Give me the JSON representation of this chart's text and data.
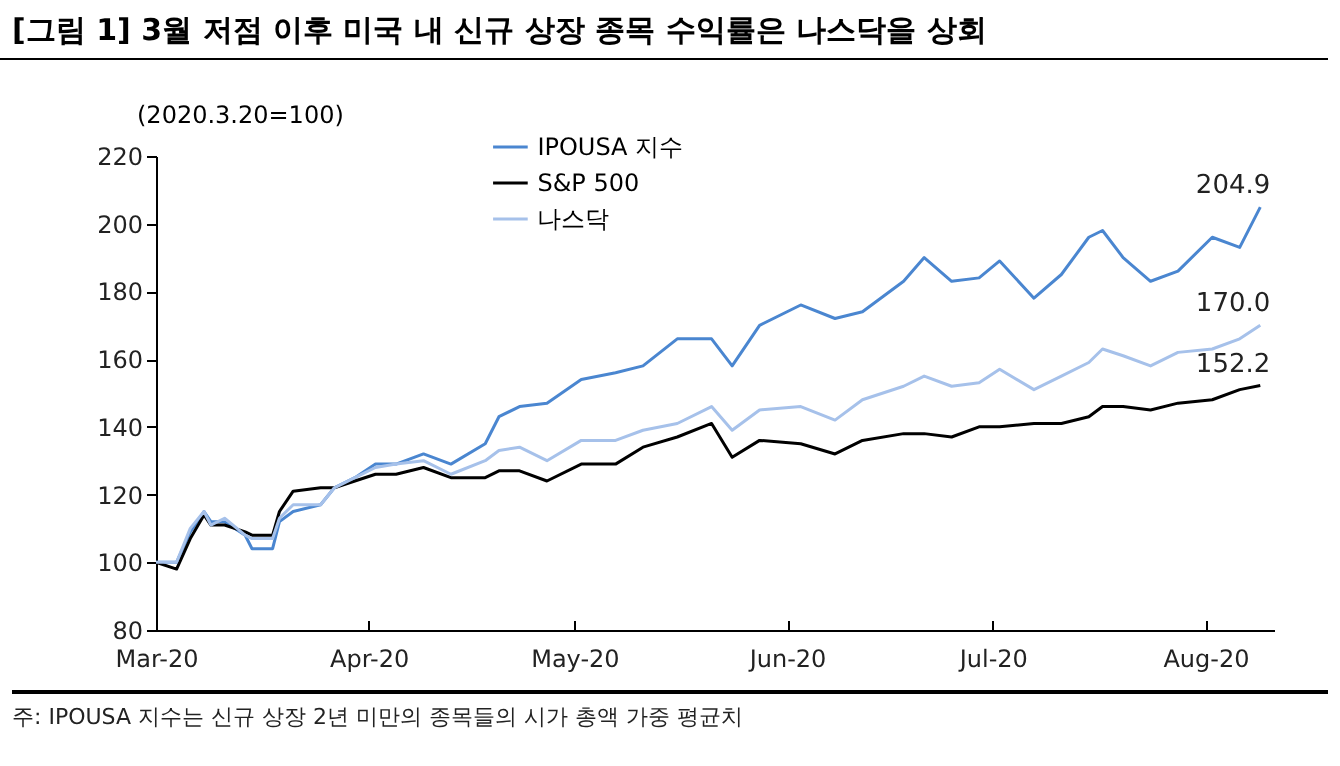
{
  "chart_data": {
    "type": "line",
    "title": "[그림 1] 3월 저점 이후 미국 내 신규 상장 종목 수익률은 나스닥을 상회",
    "ylabel": "(2020.3.20=100)",
    "annotations": [
      "주: IPOUSA 지수는 신규 상장 2년 미만의 종목들의 시가 총액 가중 평균치"
    ],
    "x": [
      "2020-03-20",
      "2020-03-23",
      "2020-03-25",
      "2020-03-27",
      "2020-03-28",
      "2020-03-30",
      "2020-04-02",
      "2020-04-03",
      "2020-04-06",
      "2020-04-07",
      "2020-04-09",
      "2020-04-13",
      "2020-04-15",
      "2020-04-18",
      "2020-04-21",
      "2020-04-24",
      "2020-04-28",
      "2020-05-02",
      "2020-05-07",
      "2020-05-09",
      "2020-05-12",
      "2020-05-16",
      "2020-05-21",
      "2020-05-26",
      "2020-05-30",
      "2020-06-04",
      "2020-06-09",
      "2020-06-12",
      "2020-06-16",
      "2020-06-22",
      "2020-06-27",
      "2020-07-01",
      "2020-07-07",
      "2020-07-10",
      "2020-07-14",
      "2020-07-18",
      "2020-07-21",
      "2020-07-26",
      "2020-07-30",
      "2020-08-03",
      "2020-08-05",
      "2020-08-08",
      "2020-08-12",
      "2020-08-16",
      "2020-08-21",
      "2020-08-25",
      "2020-08-28"
    ],
    "series": [
      {
        "name": "IPOUSA 지수",
        "color": "#4a86d0",
        "values": [
          100,
          100,
          109,
          115,
          112,
          112,
          108,
          104,
          104,
          112,
          115,
          117,
          122,
          125,
          129,
          129,
          132,
          129,
          135,
          143,
          146,
          147,
          154,
          156,
          158,
          166,
          166,
          158,
          170,
          176,
          172,
          174,
          183,
          190,
          183,
          184,
          189,
          178,
          185,
          196,
          198,
          190,
          183,
          186,
          196,
          193,
          204.9
        ],
        "value_labels": [
          null,
          null,
          null,
          null,
          null,
          null,
          null,
          null,
          null,
          null,
          null,
          null,
          null,
          null,
          null,
          null,
          null,
          null,
          null,
          null,
          null,
          null,
          null,
          null,
          null,
          null,
          null,
          null,
          null,
          null,
          null,
          null,
          null,
          null,
          null,
          null,
          null,
          null,
          null,
          null,
          null,
          null,
          null,
          null,
          null,
          null,
          "204.9"
        ]
      },
      {
        "name": "S&P 500",
        "color": "#000000",
        "values": [
          100,
          98,
          107,
          114,
          111,
          111,
          109,
          108,
          108,
          115,
          121,
          122,
          122,
          124,
          126,
          126,
          128,
          125,
          125,
          127,
          127,
          124,
          129,
          129,
          134,
          137,
          141,
          131,
          136,
          135,
          132,
          136,
          138,
          138,
          137,
          140,
          140,
          141,
          141,
          143,
          146,
          146,
          145,
          147,
          148,
          151,
          152.2
        ],
        "value_labels": [
          null,
          null,
          null,
          null,
          null,
          null,
          null,
          null,
          null,
          null,
          null,
          null,
          null,
          null,
          null,
          null,
          null,
          null,
          null,
          null,
          null,
          null,
          null,
          null,
          null,
          null,
          null,
          null,
          null,
          null,
          null,
          null,
          null,
          null,
          null,
          null,
          null,
          null,
          null,
          null,
          null,
          null,
          null,
          null,
          null,
          null,
          "152.2"
        ]
      },
      {
        "name": "나스닥",
        "color": "#a6c1ea",
        "values": [
          100,
          100,
          110,
          115,
          111,
          113,
          108,
          107,
          107,
          113,
          117,
          117,
          122,
          125,
          128,
          129,
          130,
          126,
          130,
          133,
          134,
          130,
          136,
          136,
          139,
          141,
          146,
          139,
          145,
          146,
          142,
          148,
          152,
          155,
          152,
          153,
          157,
          151,
          155,
          159,
          163,
          161,
          158,
          162,
          163,
          166,
          170
        ],
        "value_labels": [
          null,
          null,
          null,
          null,
          null,
          null,
          null,
          null,
          null,
          null,
          null,
          null,
          null,
          null,
          null,
          null,
          null,
          null,
          null,
          null,
          null,
          null,
          null,
          null,
          null,
          null,
          null,
          null,
          null,
          null,
          null,
          null,
          null,
          null,
          null,
          null,
          null,
          null,
          null,
          null,
          null,
          null,
          null,
          null,
          null,
          null,
          "170.0"
        ]
      }
    ],
    "xlim": [
      "2020-03-20",
      "2020-08-30"
    ],
    "xticks": [
      {
        "value": "2020-03-20",
        "label": "Mar-20"
      },
      {
        "value": "2020-04-20",
        "label": "Apr-20"
      },
      {
        "value": "2020-05-20",
        "label": "May-20"
      },
      {
        "value": "2020-06-20",
        "label": "Jun-20"
      },
      {
        "value": "2020-07-20",
        "label": "Jul-20"
      },
      {
        "value": "2020-08-20",
        "label": "Aug-20"
      }
    ],
    "ylim": [
      80,
      220
    ],
    "yticks": [
      80,
      100,
      120,
      140,
      160,
      180,
      200,
      220
    ],
    "grid": false,
    "legend": "top",
    "marker": "none",
    "line_style": "solid"
  }
}
